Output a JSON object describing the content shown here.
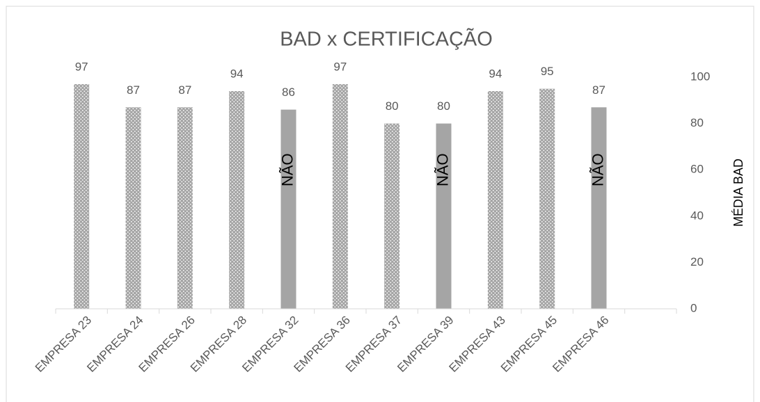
{
  "chart_data": {
    "type": "bar",
    "title": "BAD x CERTIFICAÇÃO",
    "categories": [
      "EMPRESA 23",
      "EMPRESA 24",
      "EMPRESA 26",
      "EMPRESA 28",
      "EMPRESA 32",
      "EMPRESA 36",
      "EMPRESA 37",
      "EMPRESA 39",
      "EMPRESA 43",
      "EMPRESA 45",
      "EMPRESA 46",
      null
    ],
    "values": [
      97,
      87,
      87,
      94,
      86,
      97,
      80,
      80,
      94,
      95,
      87,
      null
    ],
    "bar_labels": [
      null,
      null,
      null,
      null,
      "NÃO",
      null,
      null,
      "NÃO",
      null,
      null,
      "NÃO",
      null
    ],
    "bar_styles": [
      "dotted",
      "dotted",
      "dotted",
      "dotted",
      "solid",
      "dotted",
      "dotted",
      "solid",
      "dotted",
      "dotted",
      "solid",
      null
    ],
    "color": "#a5a5a5",
    "y_axis_label": "MÉDIA BAD",
    "y_axis_side": "right",
    "ylim": [
      0,
      100
    ],
    "yticks": [
      0,
      20,
      40,
      60,
      80,
      100
    ],
    "grid": false
  }
}
